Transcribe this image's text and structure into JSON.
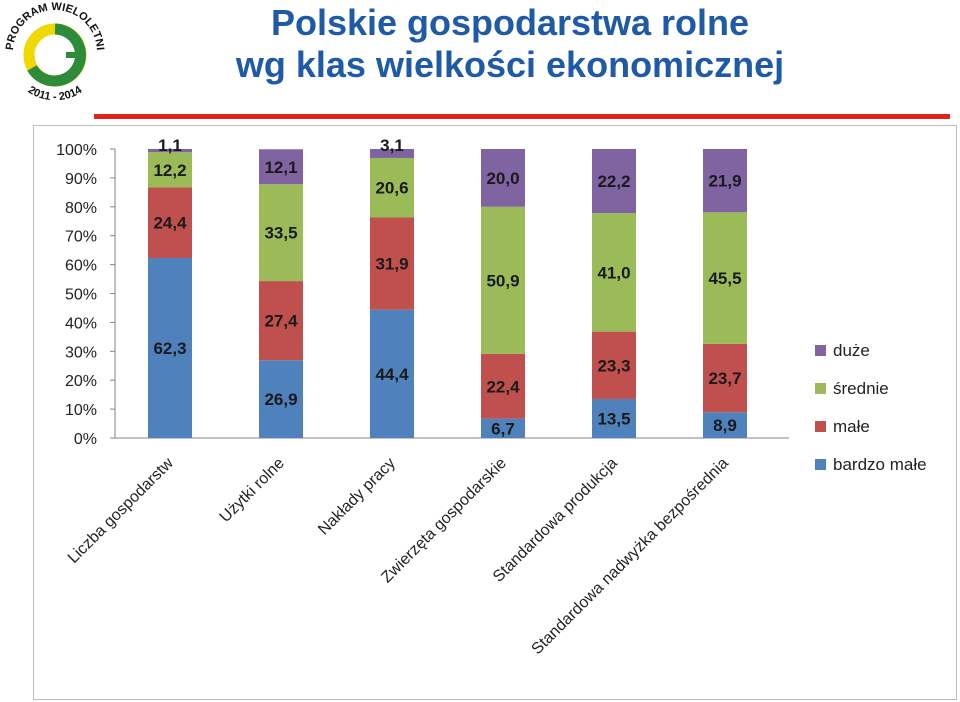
{
  "logo": {
    "top_text": "PROGRAM WIELOLETNI",
    "years": "2011 - 2014",
    "colors": {
      "green": "#2e8b3a",
      "yellow": "#f0d800"
    }
  },
  "title": {
    "line1": "Polskie gospodarstwa rolne",
    "line2": "wg klas wielkości ekonomicznej"
  },
  "chart_data": {
    "type": "bar",
    "stacked_percent": true,
    "categories": [
      "Liczba gospodarstw",
      "Użytki rolne",
      "Nakłady pracy",
      "Zwierzęta gospodarskie",
      "Standardowa produkcja",
      "Standardowa nadwyżka bezpośrednia"
    ],
    "series": [
      {
        "name": "bardzo małe",
        "color": "#4f81bd",
        "values": [
          62.3,
          26.9,
          44.4,
          6.7,
          13.5,
          8.9
        ]
      },
      {
        "name": "małe",
        "color": "#c0504d",
        "values": [
          24.4,
          27.4,
          31.9,
          22.4,
          23.3,
          23.7
        ]
      },
      {
        "name": "średnie",
        "color": "#9bbb59",
        "values": [
          12.2,
          33.5,
          20.6,
          50.9,
          41.0,
          45.5
        ]
      },
      {
        "name": "duże",
        "color": "#8064a2",
        "values": [
          1.1,
          12.1,
          3.1,
          20.0,
          22.2,
          21.9
        ]
      }
    ],
    "y_ticks": [
      "0%",
      "10%",
      "20%",
      "30%",
      "40%",
      "50%",
      "60%",
      "70%",
      "80%",
      "90%",
      "100%"
    ],
    "ylim": [
      0,
      100
    ],
    "legend_position": "right",
    "legend_order": [
      "duże",
      "średnie",
      "małe",
      "bardzo małe"
    ],
    "grid": false
  }
}
